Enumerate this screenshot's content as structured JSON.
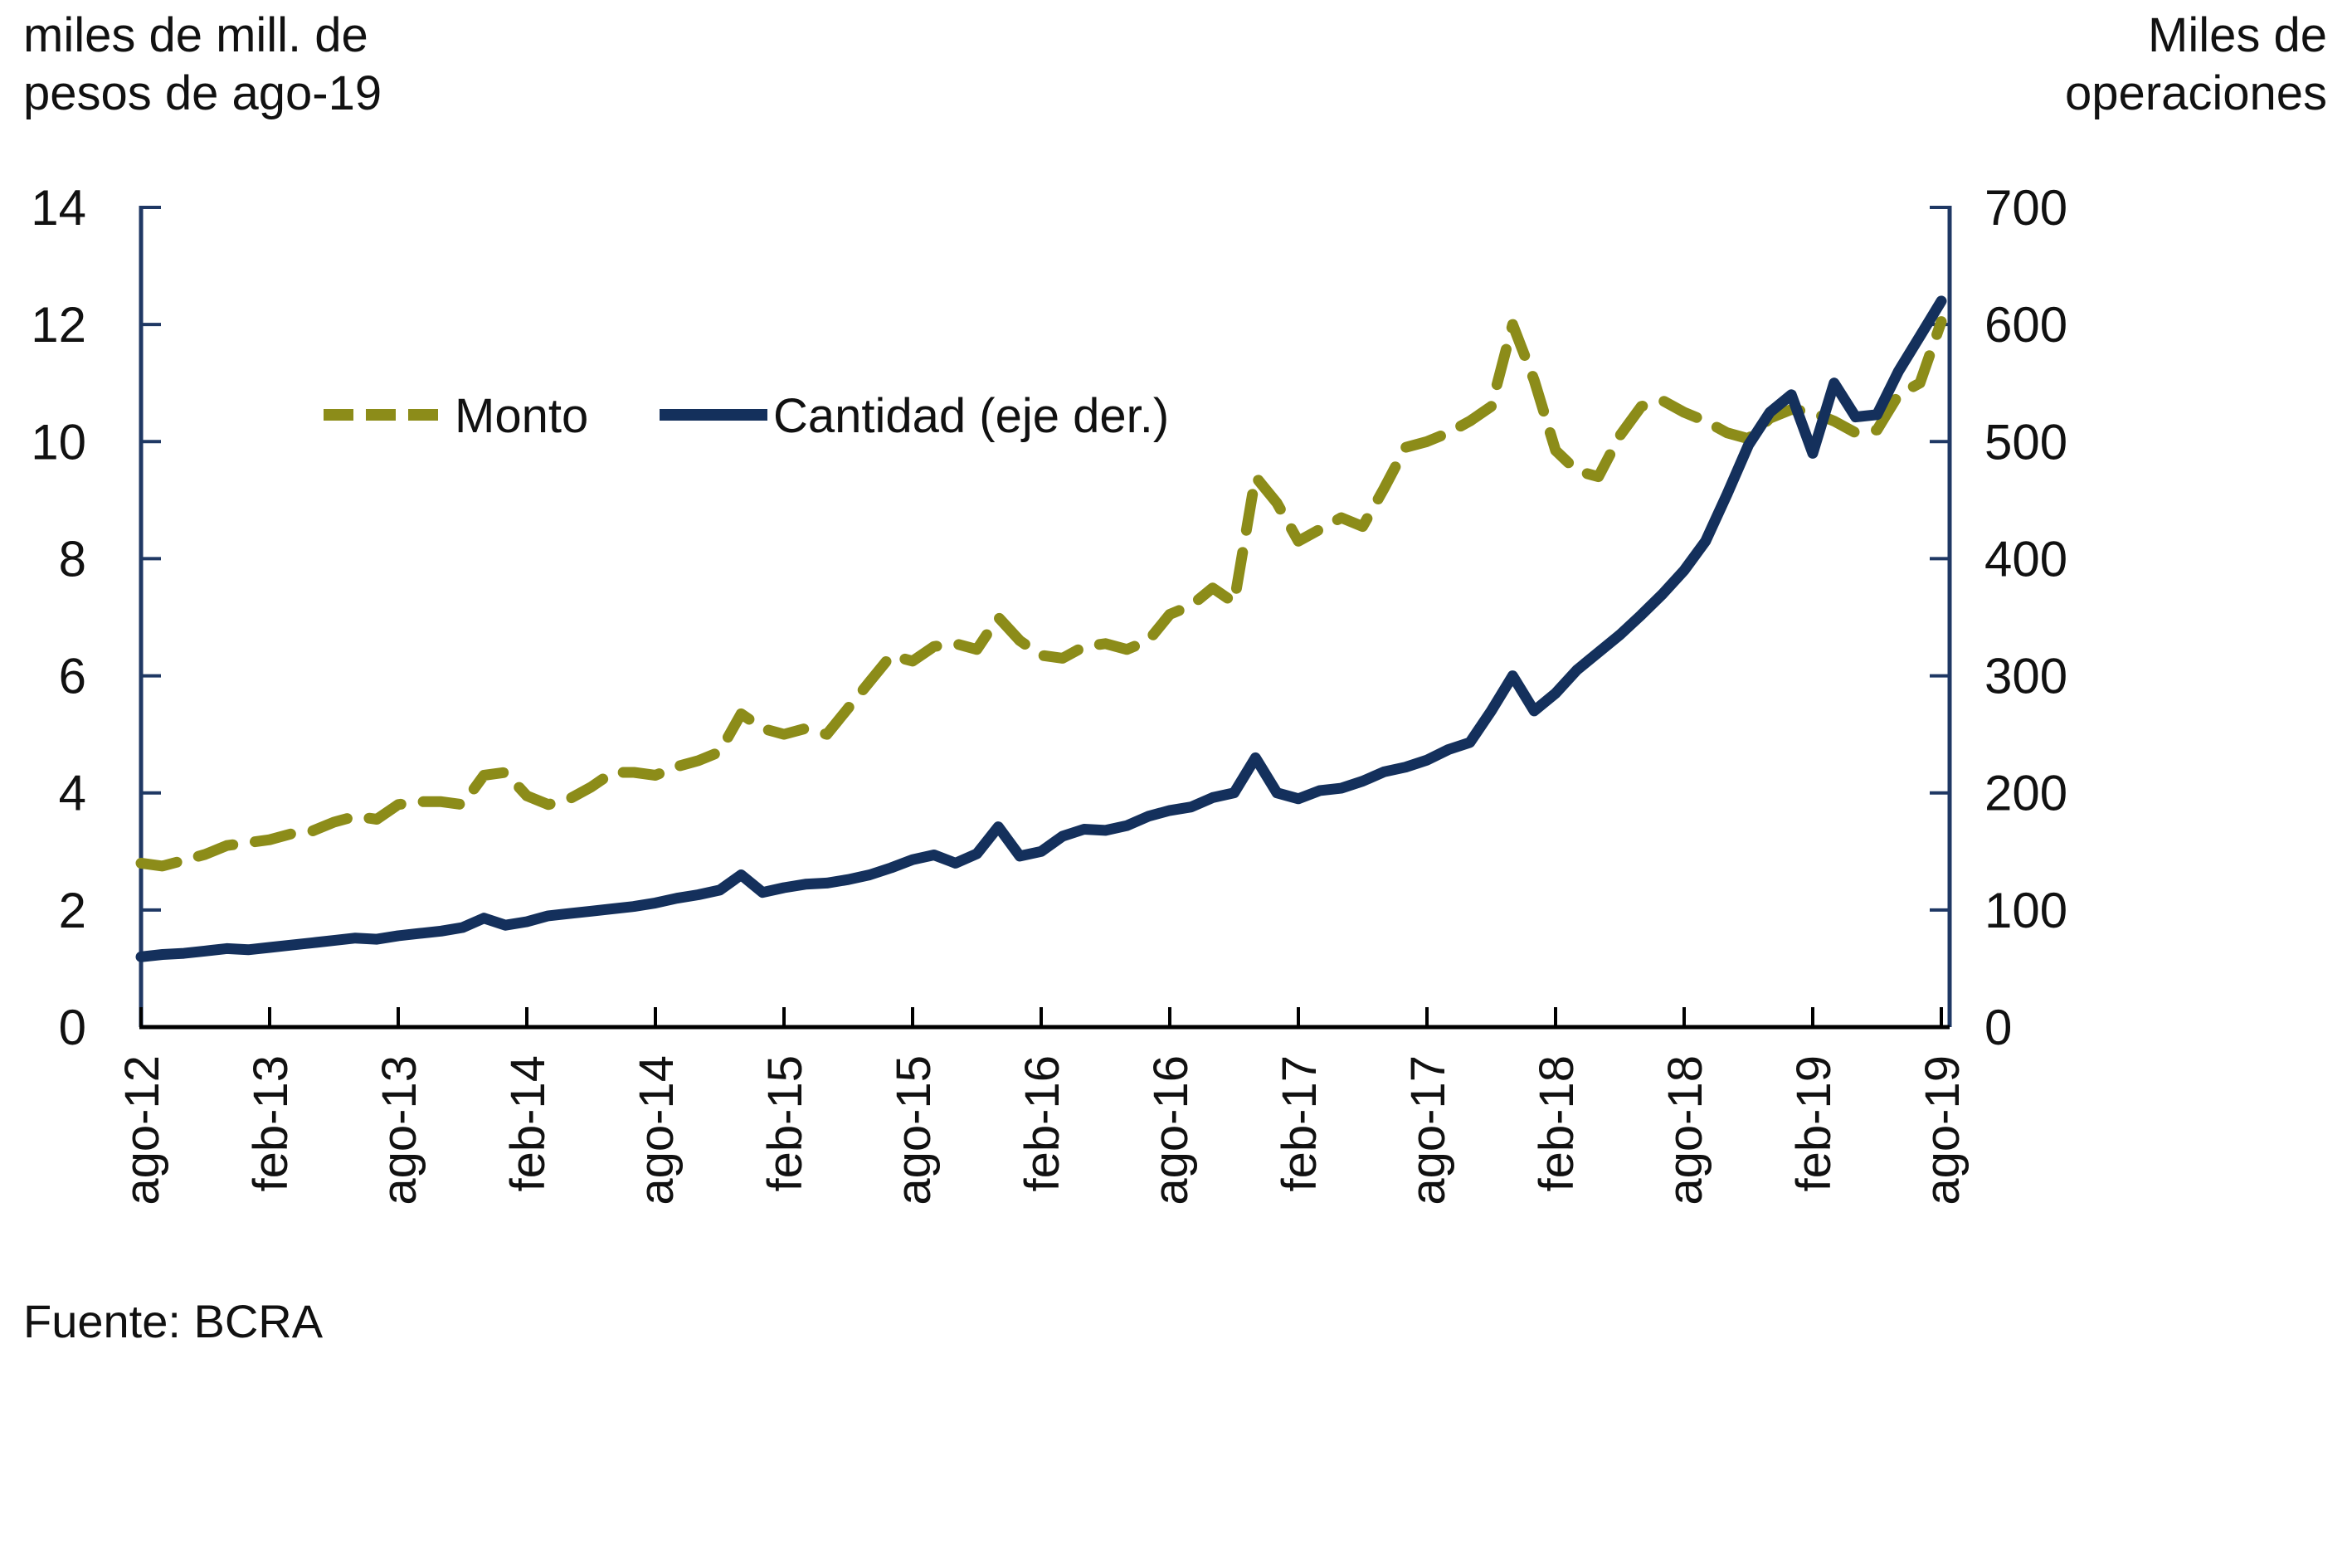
{
  "chart_data": {
    "type": "line",
    "title": "",
    "left_axis": {
      "title_line1": "miles de mill. de",
      "title_line2": "pesos de ago-19",
      "min": 0,
      "max": 14,
      "step": 2,
      "tick_labels": [
        "0",
        "2",
        "4",
        "6",
        "8",
        "10",
        "12",
        "14"
      ]
    },
    "right_axis": {
      "title_line1": "Miles de",
      "title_line2": "operaciones",
      "min": 0,
      "max": 700,
      "step": 100,
      "tick_labels": [
        "0",
        "100",
        "200",
        "300",
        "400",
        "500",
        "600",
        "700"
      ]
    },
    "x_tick_labels": [
      "ago-12",
      "feb-13",
      "ago-13",
      "feb-14",
      "ago-14",
      "feb-15",
      "ago-15",
      "feb-16",
      "ago-16",
      "feb-17",
      "ago-17",
      "feb-18",
      "ago-18",
      "feb-19",
      "ago-19"
    ],
    "x_tick_every": 6,
    "grid": false,
    "legend_position": "inside-top-left",
    "series": [
      {
        "name": "Monto",
        "axis": "left",
        "style": "dashed",
        "color": "#8c8c19",
        "values": [
          2.8,
          2.75,
          2.85,
          2.95,
          3.1,
          3.15,
          3.2,
          3.3,
          3.35,
          3.5,
          3.6,
          3.55,
          3.8,
          3.85,
          3.85,
          3.8,
          4.3,
          4.35,
          3.95,
          3.8,
          3.9,
          4.1,
          4.35,
          4.35,
          4.3,
          4.45,
          4.55,
          4.7,
          5.35,
          5.1,
          5.0,
          5.1,
          5.0,
          5.45,
          5.9,
          6.35,
          6.25,
          6.5,
          6.55,
          6.45,
          7.0,
          6.6,
          6.35,
          6.3,
          6.5,
          6.55,
          6.45,
          6.6,
          7.05,
          7.2,
          7.5,
          7.25,
          9.4,
          8.95,
          8.3,
          8.5,
          8.7,
          8.55,
          9.2,
          9.9,
          10.0,
          10.15,
          10.35,
          10.6,
          12.0,
          11.05,
          9.85,
          9.5,
          9.4,
          10.1,
          10.6,
          10.7,
          10.5,
          10.35,
          10.15,
          10.05,
          10.4,
          10.55,
          10.5,
          10.35,
          10.15,
          10.2,
          10.8,
          11.0,
          12.05
        ]
      },
      {
        "name": "Cantidad (eje der.)",
        "axis": "right",
        "style": "solid",
        "color": "#14305c",
        "values": [
          60,
          62,
          63,
          65,
          67,
          66,
          68,
          70,
          72,
          74,
          76,
          75,
          78,
          80,
          82,
          85,
          93,
          87,
          90,
          95,
          97,
          99,
          101,
          103,
          106,
          110,
          113,
          117,
          130,
          115,
          119,
          122,
          123,
          126,
          130,
          136,
          143,
          147,
          140,
          148,
          171,
          146,
          150,
          163,
          169,
          168,
          172,
          180,
          185,
          188,
          196,
          200,
          230,
          200,
          195,
          202,
          204,
          210,
          218,
          222,
          228,
          237,
          243,
          270,
          300,
          270,
          285,
          305,
          320,
          335,
          352,
          370,
          390,
          415,
          455,
          497,
          525,
          540,
          490,
          550,
          521,
          523,
          560,
          590,
          620
        ]
      }
    ],
    "source": "Fuente: BCRA",
    "colors": {
      "axis_left_right": "#1f3864",
      "axis_bottom": "#000000",
      "text": "#111111"
    }
  },
  "legend": {
    "monto": "Monto",
    "cantidad": "Cantidad (eje der.)"
  },
  "titles": {
    "left_line1": "miles de mill. de",
    "left_line2": "pesos de ago-19",
    "right_line1": "Miles de",
    "right_line2": "operaciones"
  },
  "source_text": "Fuente: BCRA"
}
